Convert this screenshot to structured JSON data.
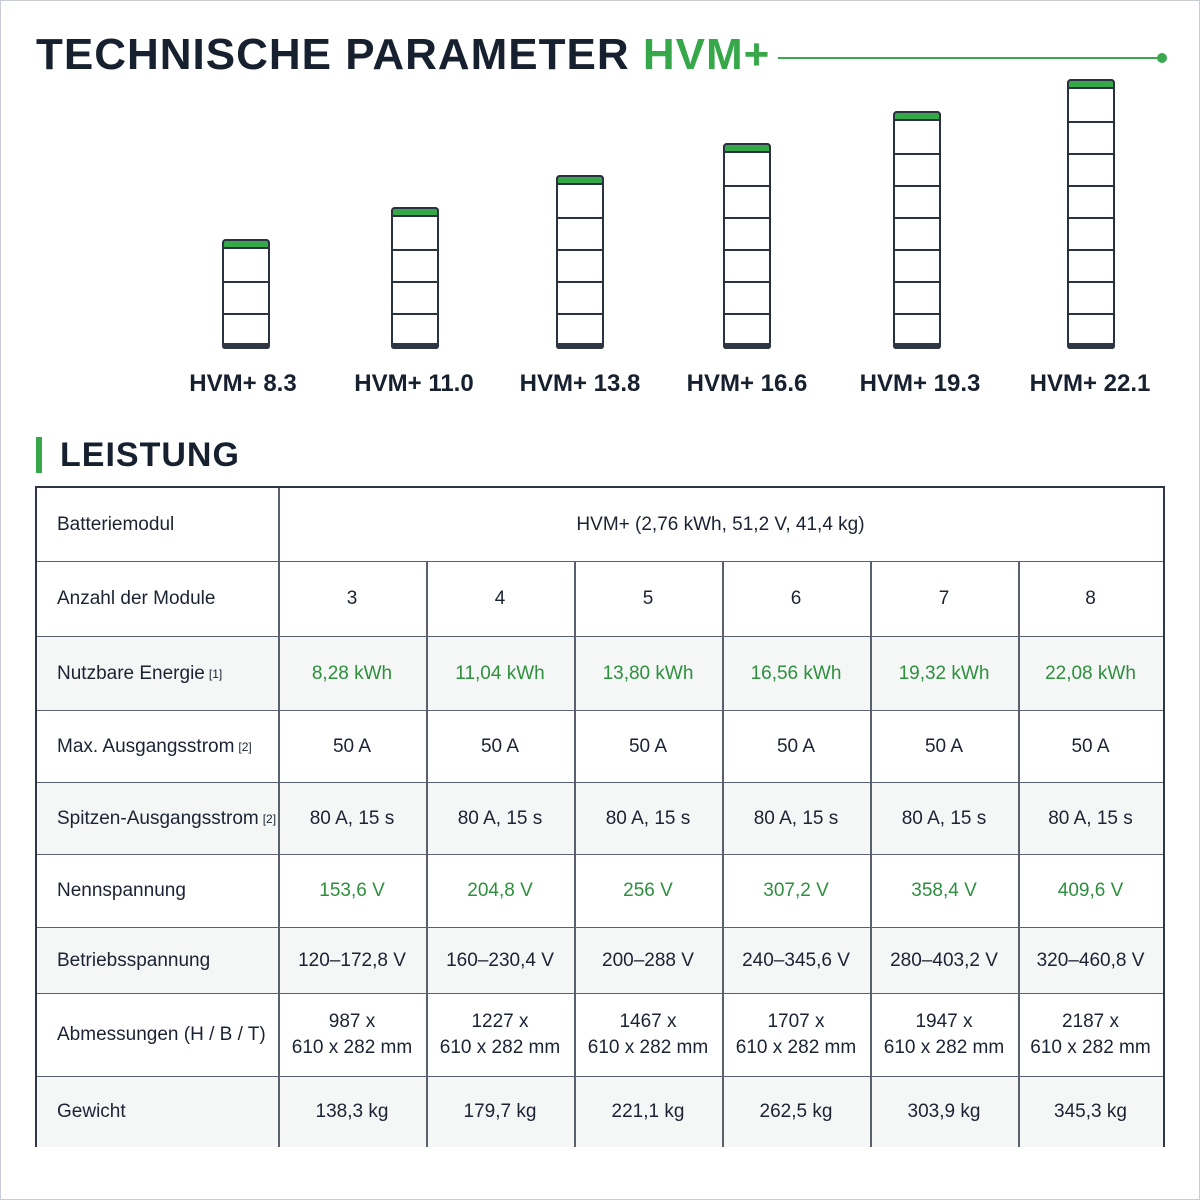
{
  "header": {
    "title_main": "TECHNISCHE PARAMETER",
    "title_accent": "HVM+",
    "accent_color": "#36a84a"
  },
  "models": [
    {
      "label": "HVM+ 8.3",
      "modules": 3
    },
    {
      "label": "HVM+ 11.0",
      "modules": 4
    },
    {
      "label": "HVM+ 13.8",
      "modules": 5
    },
    {
      "label": "HVM+ 16.6",
      "modules": 6
    },
    {
      "label": "HVM+ 19.3",
      "modules": 7
    },
    {
      "label": "HVM+ 22.1",
      "modules": 8
    }
  ],
  "section": {
    "title": "LEISTUNG"
  },
  "table": {
    "module_row": {
      "label": "Batteriemodul",
      "value": "HVM+ (2,76 kWh, 51,2 V, 41,4 kg)"
    },
    "rows": [
      {
        "label": "Anzahl der Module",
        "note": "",
        "values": [
          "3",
          "4",
          "5",
          "6",
          "7",
          "8"
        ],
        "green": false
      },
      {
        "label": "Nutzbare Energie",
        "note": "[1]",
        "values": [
          "8,28 kWh",
          "11,04 kWh",
          "13,80 kWh",
          "16,56 kWh",
          "19,32 kWh",
          "22,08 kWh"
        ],
        "green": true
      },
      {
        "label": "Max. Ausgangsstrom",
        "note": "[2]",
        "values": [
          "50 A",
          "50 A",
          "50 A",
          "50 A",
          "50 A",
          "50 A"
        ],
        "green": false
      },
      {
        "label": "Spitzen-Ausgangsstrom",
        "note": "[2]",
        "values": [
          "80 A, 15 s",
          "80 A, 15 s",
          "80 A, 15 s",
          "80 A, 15 s",
          "80 A, 15 s",
          "80 A, 15 s"
        ],
        "green": false
      },
      {
        "label": "Nennspannung",
        "note": "",
        "values": [
          "153,6 V",
          "204,8 V",
          "256 V",
          "307,2 V",
          "358,4 V",
          "409,6 V"
        ],
        "green": true
      },
      {
        "label": "Betriebsspannung",
        "note": "",
        "values": [
          "120–172,8 V",
          "160–230,4 V",
          "200–288 V",
          "240–345,6 V",
          "280–403,2 V",
          "320–460,8 V"
        ],
        "green": false
      },
      {
        "label": "Abmessungen (H / B / T)",
        "note": "",
        "values": [
          "987 x\n610 x 282 mm",
          "1227 x\n610 x 282 mm",
          "1467 x\n610 x 282 mm",
          "1707 x\n610 x 282 mm",
          "1947 x\n610 x 282 mm",
          "2187 x\n610 x 282 mm"
        ],
        "green": false
      },
      {
        "label": "Gewicht",
        "note": "",
        "values": [
          "138,3 kg",
          "179,7 kg",
          "221,1 kg",
          "262,5 kg",
          "303,9 kg",
          "345,3 kg"
        ],
        "green": false
      }
    ]
  }
}
